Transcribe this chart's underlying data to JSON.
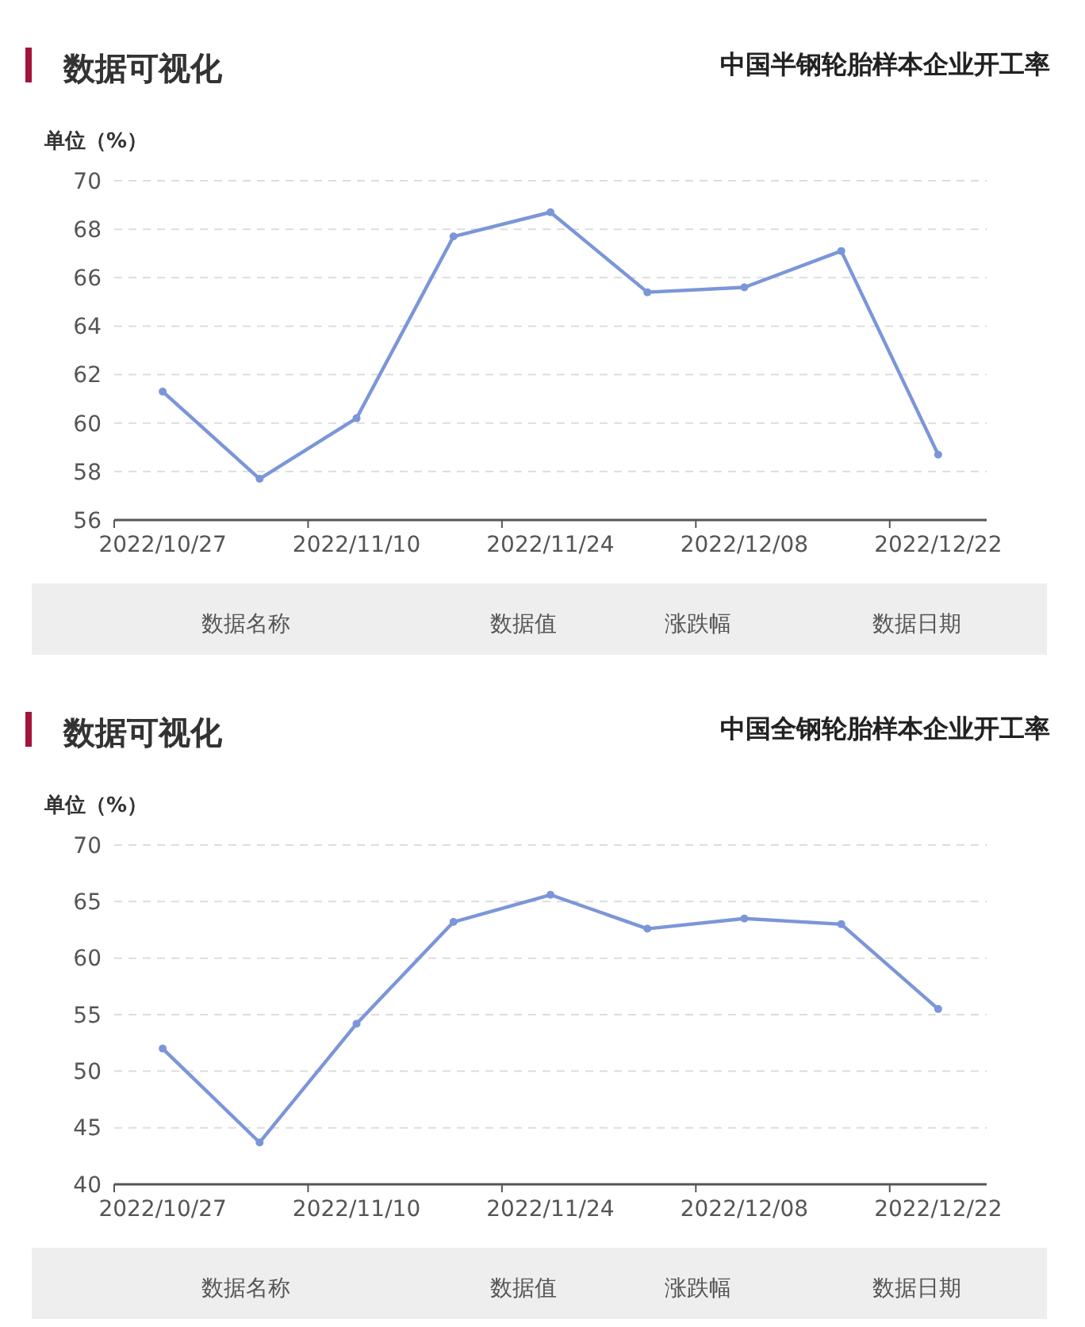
{
  "chart_data": [
    {
      "type": "line",
      "title": "中国半钢轮胎样本企业开工率",
      "subtitle": "数据可视化",
      "ylabel": "单位（%）",
      "categories": [
        "2022/10/27",
        null,
        "2022/11/10",
        null,
        "2022/11/24",
        null,
        "2022/12/08",
        null,
        "2022/12/22"
      ],
      "series": [
        {
          "color": "#7b96d8",
          "values": [
            61.3,
            57.7,
            60.2,
            67.7,
            68.7,
            65.4,
            65.6,
            67.1,
            58.7
          ]
        }
      ],
      "ylim": [
        56,
        70
      ],
      "yticks": [
        56,
        58,
        60,
        62,
        64,
        66,
        68,
        70
      ],
      "grid": "y",
      "marker": "circle",
      "line_style": "solid",
      "annotations": [
        "数据名称",
        "数据值",
        "涨跌幅",
        "数据日期"
      ]
    },
    {
      "type": "line",
      "title": "中国全钢轮胎样本企业开工率",
      "subtitle": "数据可视化",
      "ylabel": "单位（%）",
      "categories": [
        "2022/10/27",
        null,
        "2022/11/10",
        null,
        "2022/11/24",
        null,
        "2022/12/08",
        null,
        "2022/12/22"
      ],
      "series": [
        {
          "color": "#7b96d8",
          "values": [
            52.0,
            43.7,
            54.2,
            63.2,
            65.6,
            62.6,
            63.5,
            63.0,
            55.5
          ]
        }
      ],
      "ylim": [
        40,
        70
      ],
      "yticks": [
        40,
        45,
        50,
        55,
        60,
        65,
        70
      ],
      "grid": "y",
      "marker": "circle",
      "line_style": "solid",
      "annotations": [
        "数据名称",
        "数据值",
        "涨跌幅",
        "数据日期"
      ]
    }
  ]
}
